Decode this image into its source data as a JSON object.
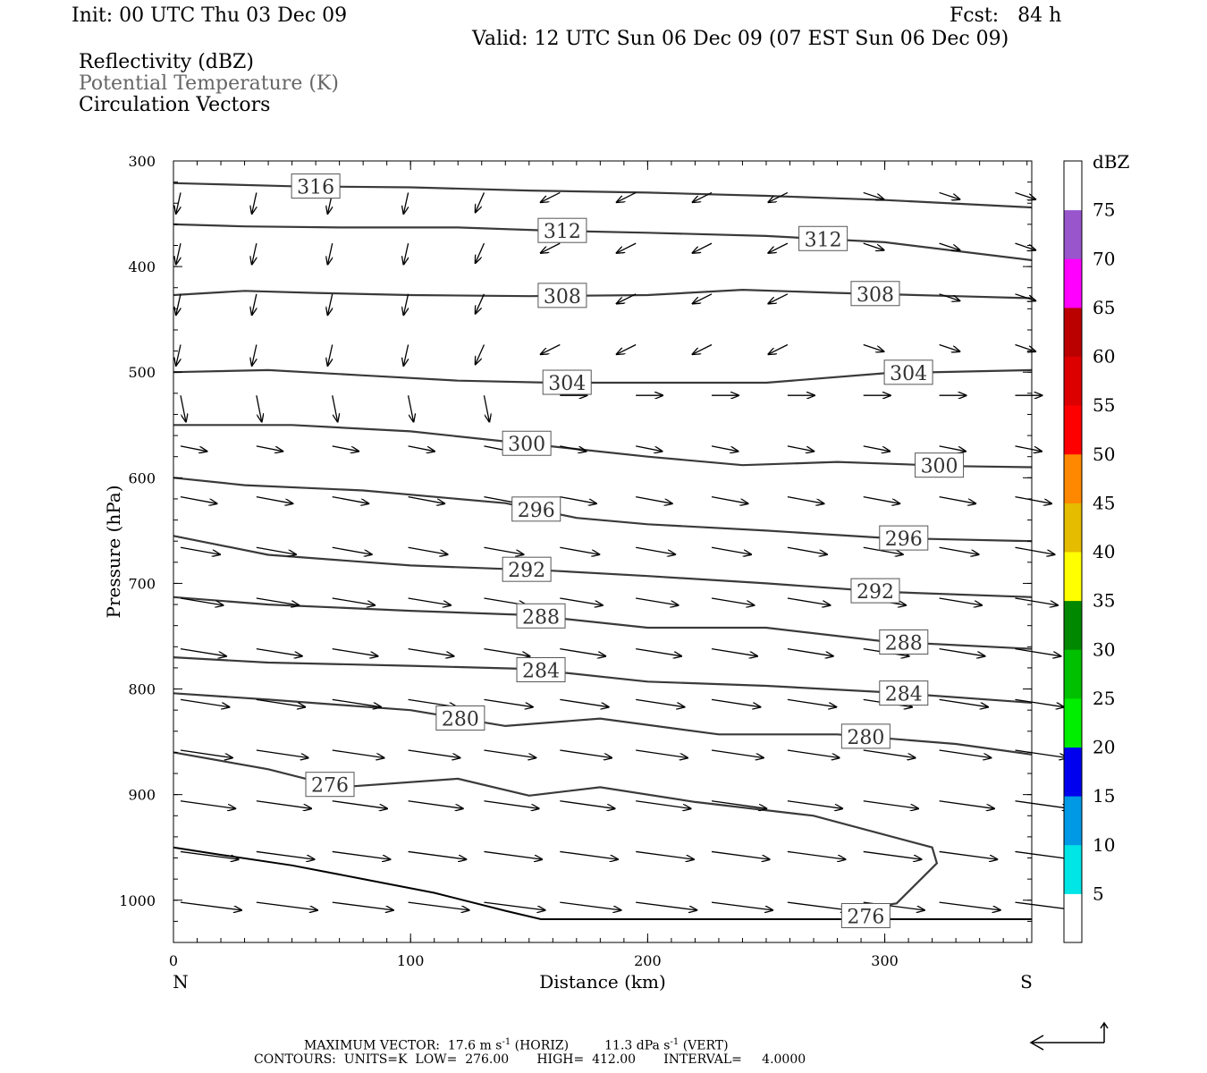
{
  "header": {
    "init": "Init: 00 UTC Thu 03 Dec 09",
    "fcst": "Fcst:   84 h",
    "valid": "Valid: 12 UTC Sun 06 Dec 09 (07 EST Sun 06 Dec 09)"
  },
  "fields": {
    "reflectivity": "Reflectivity (dBZ)",
    "theta": "Potential Temperature (K)",
    "vectors": "Circulation Vectors"
  },
  "footer": {
    "max_vector_label": "MAXIMUM VECTOR:",
    "horiz_value": "17.6 m s",
    "horiz_exp": "-1",
    "horiz_suffix": "(HORIZ)",
    "vert_value": "11.3 dPa s",
    "vert_exp": "-1",
    "vert_suffix": "(VERT)",
    "contours_line": "CONTOURS:  UNITS=K  LOW=  276.00       HIGH=  412.00       INTERVAL=     4.0000"
  },
  "colors": {
    "contour": "#3a3a3a",
    "vector": "#000000",
    "frame": "#000000"
  },
  "chart_data": {
    "type": "line",
    "xlabel": "Distance (km)",
    "ylabel": "Pressure (hPa)",
    "x_ticks": [
      0,
      100,
      200,
      300
    ],
    "y_ticks": [
      300,
      400,
      500,
      600,
      700,
      800,
      900,
      1000
    ],
    "xlim": [
      0,
      362
    ],
    "ylim": [
      300,
      1040
    ],
    "left_end_label": "N",
    "right_end_label": "S",
    "colorbar": {
      "unit": "dBZ",
      "levels": [
        5,
        10,
        15,
        20,
        25,
        30,
        35,
        40,
        45,
        50,
        55,
        60,
        65,
        70,
        75
      ],
      "colors": [
        "#ffffff",
        "#00e5e5",
        "#0099e5",
        "#0000ee",
        "#00ee00",
        "#00c000",
        "#008800",
        "#ffff00",
        "#e5bc00",
        "#ff8800",
        "#ff0000",
        "#dd0000",
        "#bb0000",
        "#ff00ff",
        "#9955cc",
        "#ffffff"
      ]
    },
    "series": [
      {
        "theta": 316,
        "points": [
          [
            0,
            321
          ],
          [
            50,
            324
          ],
          [
            100,
            325
          ],
          [
            150,
            328
          ],
          [
            200,
            330
          ],
          [
            250,
            333
          ],
          [
            300,
            337
          ],
          [
            362,
            344
          ]
        ]
      },
      {
        "theta": 312,
        "points": [
          [
            0,
            360
          ],
          [
            30,
            362
          ],
          [
            70,
            363
          ],
          [
            120,
            363
          ],
          [
            160,
            366
          ],
          [
            200,
            368
          ],
          [
            250,
            371
          ],
          [
            300,
            377
          ],
          [
            362,
            394
          ]
        ]
      },
      {
        "theta": 308,
        "points": [
          [
            0,
            427
          ],
          [
            30,
            423
          ],
          [
            60,
            425
          ],
          [
            100,
            427
          ],
          [
            150,
            428
          ],
          [
            200,
            427
          ],
          [
            240,
            422
          ],
          [
            280,
            425
          ],
          [
            330,
            428
          ],
          [
            362,
            430
          ]
        ]
      },
      {
        "theta": 304,
        "points": [
          [
            0,
            500
          ],
          [
            40,
            498
          ],
          [
            80,
            503
          ],
          [
            120,
            508
          ],
          [
            160,
            510
          ],
          [
            200,
            510
          ],
          [
            250,
            510
          ],
          [
            300,
            501
          ],
          [
            362,
            498
          ]
        ]
      },
      {
        "theta": 300,
        "points": [
          [
            0,
            550
          ],
          [
            50,
            550
          ],
          [
            100,
            556
          ],
          [
            150,
            568
          ],
          [
            200,
            580
          ],
          [
            240,
            588
          ],
          [
            280,
            585
          ],
          [
            330,
            589
          ],
          [
            362,
            590
          ]
        ]
      },
      {
        "theta": 296,
        "points": [
          [
            0,
            600
          ],
          [
            30,
            607
          ],
          [
            80,
            612
          ],
          [
            140,
            624
          ],
          [
            170,
            638
          ],
          [
            200,
            644
          ],
          [
            250,
            650
          ],
          [
            300,
            657
          ],
          [
            362,
            660
          ]
        ]
      },
      {
        "theta": 292,
        "points": [
          [
            0,
            655
          ],
          [
            40,
            673
          ],
          [
            100,
            683
          ],
          [
            160,
            688
          ],
          [
            200,
            693
          ],
          [
            250,
            700
          ],
          [
            300,
            708
          ],
          [
            362,
            713
          ]
        ]
      },
      {
        "theta": 288,
        "points": [
          [
            0,
            713
          ],
          [
            40,
            720
          ],
          [
            100,
            726
          ],
          [
            150,
            730
          ],
          [
            200,
            742
          ],
          [
            250,
            742
          ],
          [
            300,
            755
          ],
          [
            362,
            762
          ]
        ]
      },
      {
        "theta": 284,
        "points": [
          [
            0,
            770
          ],
          [
            40,
            775
          ],
          [
            100,
            778
          ],
          [
            150,
            781
          ],
          [
            200,
            793
          ],
          [
            250,
            797
          ],
          [
            300,
            803
          ],
          [
            362,
            813
          ]
        ]
      },
      {
        "theta": 280,
        "points": [
          [
            0,
            804
          ],
          [
            40,
            810
          ],
          [
            100,
            820
          ],
          [
            140,
            835
          ],
          [
            180,
            828
          ],
          [
            230,
            843
          ],
          [
            280,
            843
          ],
          [
            330,
            852
          ],
          [
            362,
            862
          ]
        ]
      },
      {
        "theta": 276,
        "points": [
          [
            0,
            860
          ],
          [
            40,
            876
          ],
          [
            70,
            893
          ],
          [
            120,
            885
          ],
          [
            150,
            901
          ],
          [
            180,
            893
          ],
          [
            220,
            907
          ],
          [
            270,
            920
          ],
          [
            320,
            950
          ],
          [
            322,
            965
          ],
          [
            305,
            1003
          ],
          [
            285,
            1010
          ]
        ]
      }
    ],
    "lower_line_points": [
      [
        0,
        950
      ],
      [
        20,
        957
      ],
      [
        50,
        967
      ],
      [
        80,
        980
      ],
      [
        110,
        993
      ],
      [
        140,
        1010
      ],
      [
        155,
        1018
      ],
      [
        362,
        1018
      ]
    ]
  }
}
